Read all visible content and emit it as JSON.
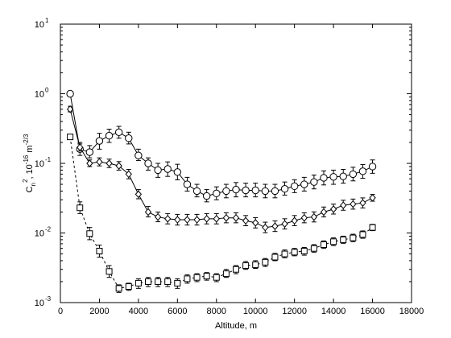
{
  "chart_data": {
    "type": "scatter",
    "title": "",
    "xlabel": "Altitude, m",
    "ylabel": {
      "base": "C",
      "sub": "n",
      "sup": "2",
      "rest": ", 10",
      "exp": "-16",
      "unit": " m",
      "unit_exp": "-2/3"
    },
    "xlim": [
      0,
      18000
    ],
    "ylim": [
      0.001,
      10
    ],
    "y_scale": "log",
    "grid": false,
    "legend": "none",
    "x_ticks": [
      0,
      2000,
      4000,
      6000,
      8000,
      10000,
      12000,
      14000,
      16000,
      18000
    ],
    "x_tick_labels": [
      "0",
      "2000",
      "4000",
      "6000",
      "8000",
      "10000",
      "12000",
      "14000",
      "16000",
      "18000"
    ],
    "y_ticks": [
      0.001,
      0.01,
      0.1,
      1,
      10
    ],
    "y_tick_labels": [
      {
        "base": "10",
        "exp": "-3"
      },
      {
        "base": "10",
        "exp": "-2"
      },
      {
        "base": "10",
        "exp": "-1"
      },
      {
        "base": "10",
        "exp": "0"
      },
      {
        "base": "10",
        "exp": "1"
      }
    ],
    "series": [
      {
        "marker": "circle",
        "line": "solid",
        "points": [
          {
            "x": 500,
            "y": 1.0,
            "lo": 0.92,
            "hi": 1.08
          },
          {
            "x": 1000,
            "y": 0.16,
            "lo": 0.13,
            "hi": 0.2
          },
          {
            "x": 1500,
            "y": 0.145,
            "lo": 0.12,
            "hi": 0.18
          },
          {
            "x": 2000,
            "y": 0.21,
            "lo": 0.16,
            "hi": 0.27
          },
          {
            "x": 2500,
            "y": 0.25,
            "lo": 0.2,
            "hi": 0.31
          },
          {
            "x": 3000,
            "y": 0.28,
            "lo": 0.23,
            "hi": 0.34
          },
          {
            "x": 3500,
            "y": 0.23,
            "lo": 0.19,
            "hi": 0.28
          },
          {
            "x": 4000,
            "y": 0.13,
            "lo": 0.11,
            "hi": 0.16
          },
          {
            "x": 4500,
            "y": 0.1,
            "lo": 0.08,
            "hi": 0.12
          },
          {
            "x": 5000,
            "y": 0.08,
            "lo": 0.063,
            "hi": 0.1
          },
          {
            "x": 5500,
            "y": 0.083,
            "lo": 0.065,
            "hi": 0.105
          },
          {
            "x": 6000,
            "y": 0.075,
            "lo": 0.058,
            "hi": 0.097
          },
          {
            "x": 6500,
            "y": 0.05,
            "lo": 0.04,
            "hi": 0.063
          },
          {
            "x": 7000,
            "y": 0.04,
            "lo": 0.033,
            "hi": 0.05
          },
          {
            "x": 7500,
            "y": 0.034,
            "lo": 0.028,
            "hi": 0.042
          },
          {
            "x": 8000,
            "y": 0.037,
            "lo": 0.03,
            "hi": 0.046
          },
          {
            "x": 8500,
            "y": 0.04,
            "lo": 0.032,
            "hi": 0.05
          },
          {
            "x": 9000,
            "y": 0.042,
            "lo": 0.033,
            "hi": 0.053
          },
          {
            "x": 9500,
            "y": 0.041,
            "lo": 0.033,
            "hi": 0.052
          },
          {
            "x": 10000,
            "y": 0.041,
            "lo": 0.033,
            "hi": 0.052
          },
          {
            "x": 10500,
            "y": 0.04,
            "lo": 0.032,
            "hi": 0.05
          },
          {
            "x": 11000,
            "y": 0.04,
            "lo": 0.032,
            "hi": 0.05
          },
          {
            "x": 11500,
            "y": 0.043,
            "lo": 0.035,
            "hi": 0.054
          },
          {
            "x": 12000,
            "y": 0.047,
            "lo": 0.038,
            "hi": 0.058
          },
          {
            "x": 12500,
            "y": 0.05,
            "lo": 0.04,
            "hi": 0.063
          },
          {
            "x": 13000,
            "y": 0.054,
            "lo": 0.043,
            "hi": 0.068
          },
          {
            "x": 13500,
            "y": 0.062,
            "lo": 0.049,
            "hi": 0.078
          },
          {
            "x": 14000,
            "y": 0.064,
            "lo": 0.05,
            "hi": 0.08
          },
          {
            "x": 14500,
            "y": 0.065,
            "lo": 0.052,
            "hi": 0.082
          },
          {
            "x": 15000,
            "y": 0.07,
            "lo": 0.056,
            "hi": 0.088
          },
          {
            "x": 15500,
            "y": 0.077,
            "lo": 0.061,
            "hi": 0.096
          },
          {
            "x": 16000,
            "y": 0.09,
            "lo": 0.072,
            "hi": 0.112
          }
        ]
      },
      {
        "marker": "diamond",
        "line": "solid",
        "points": [
          {
            "x": 500,
            "y": 0.6,
            "lo": 0.55,
            "hi": 0.66
          },
          {
            "x": 1000,
            "y": 0.17,
            "lo": 0.15,
            "hi": 0.19
          },
          {
            "x": 1500,
            "y": 0.1,
            "lo": 0.09,
            "hi": 0.112
          },
          {
            "x": 2000,
            "y": 0.105,
            "lo": 0.092,
            "hi": 0.12
          },
          {
            "x": 2500,
            "y": 0.1,
            "lo": 0.087,
            "hi": 0.115
          },
          {
            "x": 3000,
            "y": 0.092,
            "lo": 0.08,
            "hi": 0.106
          },
          {
            "x": 3500,
            "y": 0.07,
            "lo": 0.06,
            "hi": 0.082
          },
          {
            "x": 4000,
            "y": 0.036,
            "lo": 0.031,
            "hi": 0.042
          },
          {
            "x": 4500,
            "y": 0.02,
            "lo": 0.017,
            "hi": 0.024
          },
          {
            "x": 5000,
            "y": 0.017,
            "lo": 0.0145,
            "hi": 0.02
          },
          {
            "x": 5500,
            "y": 0.016,
            "lo": 0.0135,
            "hi": 0.019
          },
          {
            "x": 6000,
            "y": 0.0155,
            "lo": 0.013,
            "hi": 0.0185
          },
          {
            "x": 6500,
            "y": 0.0155,
            "lo": 0.013,
            "hi": 0.0185
          },
          {
            "x": 7000,
            "y": 0.0155,
            "lo": 0.013,
            "hi": 0.0185
          },
          {
            "x": 7500,
            "y": 0.016,
            "lo": 0.0135,
            "hi": 0.019
          },
          {
            "x": 8000,
            "y": 0.016,
            "lo": 0.0135,
            "hi": 0.019
          },
          {
            "x": 8500,
            "y": 0.0165,
            "lo": 0.014,
            "hi": 0.0195
          },
          {
            "x": 9000,
            "y": 0.0165,
            "lo": 0.014,
            "hi": 0.0195
          },
          {
            "x": 9500,
            "y": 0.015,
            "lo": 0.0127,
            "hi": 0.0178
          },
          {
            "x": 10000,
            "y": 0.014,
            "lo": 0.0118,
            "hi": 0.0166
          },
          {
            "x": 10500,
            "y": 0.012,
            "lo": 0.0101,
            "hi": 0.0143
          },
          {
            "x": 11000,
            "y": 0.0125,
            "lo": 0.0105,
            "hi": 0.0149
          },
          {
            "x": 11500,
            "y": 0.0135,
            "lo": 0.0114,
            "hi": 0.016
          },
          {
            "x": 12000,
            "y": 0.015,
            "lo": 0.0127,
            "hi": 0.0178
          },
          {
            "x": 12500,
            "y": 0.0165,
            "lo": 0.014,
            "hi": 0.0195
          },
          {
            "x": 13000,
            "y": 0.017,
            "lo": 0.0144,
            "hi": 0.0201
          },
          {
            "x": 13500,
            "y": 0.02,
            "lo": 0.017,
            "hi": 0.0236
          },
          {
            "x": 14000,
            "y": 0.022,
            "lo": 0.0187,
            "hi": 0.026
          },
          {
            "x": 14500,
            "y": 0.025,
            "lo": 0.0212,
            "hi": 0.0295
          },
          {
            "x": 15000,
            "y": 0.026,
            "lo": 0.022,
            "hi": 0.0307
          },
          {
            "x": 15500,
            "y": 0.027,
            "lo": 0.0229,
            "hi": 0.0319
          },
          {
            "x": 16000,
            "y": 0.032,
            "lo": 0.0286,
            "hi": 0.0358
          }
        ]
      },
      {
        "marker": "square",
        "line": "dashed",
        "points": [
          {
            "x": 500,
            "y": 0.24,
            "lo": 0.22,
            "hi": 0.26
          },
          {
            "x": 1000,
            "y": 0.023,
            "lo": 0.019,
            "hi": 0.028
          },
          {
            "x": 1500,
            "y": 0.0098,
            "lo": 0.008,
            "hi": 0.012
          },
          {
            "x": 2000,
            "y": 0.0055,
            "lo": 0.0045,
            "hi": 0.0067
          },
          {
            "x": 2500,
            "y": 0.0028,
            "lo": 0.0023,
            "hi": 0.0034
          },
          {
            "x": 3000,
            "y": 0.0016,
            "lo": 0.0014,
            "hi": 0.0018
          },
          {
            "x": 3500,
            "y": 0.0017,
            "lo": 0.0015,
            "hi": 0.0019
          },
          {
            "x": 4000,
            "y": 0.0019,
            "lo": 0.0016,
            "hi": 0.0022
          },
          {
            "x": 4500,
            "y": 0.002,
            "lo": 0.0017,
            "hi": 0.0023
          },
          {
            "x": 5000,
            "y": 0.002,
            "lo": 0.0017,
            "hi": 0.0023
          },
          {
            "x": 5500,
            "y": 0.002,
            "lo": 0.0017,
            "hi": 0.0023
          },
          {
            "x": 6000,
            "y": 0.0019,
            "lo": 0.0016,
            "hi": 0.0022
          },
          {
            "x": 6500,
            "y": 0.0022,
            "lo": 0.0019,
            "hi": 0.0025
          },
          {
            "x": 7000,
            "y": 0.0023,
            "lo": 0.002,
            "hi": 0.0026
          },
          {
            "x": 7500,
            "y": 0.0024,
            "lo": 0.0021,
            "hi": 0.0027
          },
          {
            "x": 8000,
            "y": 0.0023,
            "lo": 0.002,
            "hi": 0.0026
          },
          {
            "x": 8500,
            "y": 0.0026,
            "lo": 0.0023,
            "hi": 0.003
          },
          {
            "x": 9000,
            "y": 0.003,
            "lo": 0.0026,
            "hi": 0.0034
          },
          {
            "x": 9500,
            "y": 0.0034,
            "lo": 0.003,
            "hi": 0.0039
          },
          {
            "x": 10000,
            "y": 0.0035,
            "lo": 0.0031,
            "hi": 0.004
          },
          {
            "x": 10500,
            "y": 0.0038,
            "lo": 0.0033,
            "hi": 0.0043
          },
          {
            "x": 11000,
            "y": 0.0045,
            "lo": 0.004,
            "hi": 0.0051
          },
          {
            "x": 11500,
            "y": 0.005,
            "lo": 0.0044,
            "hi": 0.0057
          },
          {
            "x": 12000,
            "y": 0.0053,
            "lo": 0.0047,
            "hi": 0.006
          },
          {
            "x": 12500,
            "y": 0.0055,
            "lo": 0.0048,
            "hi": 0.0062
          },
          {
            "x": 13000,
            "y": 0.006,
            "lo": 0.0053,
            "hi": 0.0068
          },
          {
            "x": 13500,
            "y": 0.0068,
            "lo": 0.006,
            "hi": 0.0077
          },
          {
            "x": 14000,
            "y": 0.0075,
            "lo": 0.0066,
            "hi": 0.0085
          },
          {
            "x": 14500,
            "y": 0.008,
            "lo": 0.0071,
            "hi": 0.009
          },
          {
            "x": 15000,
            "y": 0.0085,
            "lo": 0.0075,
            "hi": 0.0096
          },
          {
            "x": 15500,
            "y": 0.0095,
            "lo": 0.0084,
            "hi": 0.0107
          },
          {
            "x": 16000,
            "y": 0.012,
            "lo": 0.0108,
            "hi": 0.0133
          }
        ]
      }
    ]
  }
}
